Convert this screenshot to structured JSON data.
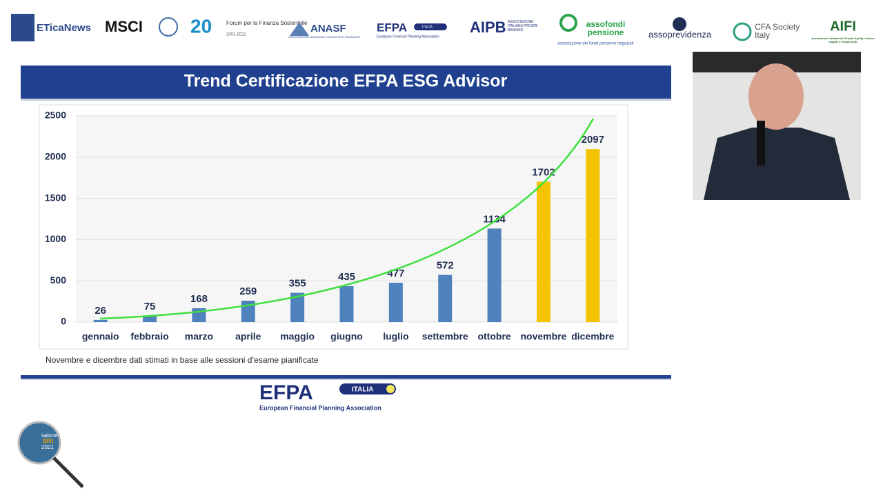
{
  "logos": {
    "eticanews": "ETicaNews",
    "msci": "MSCI",
    "forum_number": "20",
    "forum_name": "Forum per la Finanza Sostenibile",
    "forum_years": "2001-2021",
    "anasf": "ANASF",
    "anasf_sub": "ASSOCIAZIONE NAZIONALE CONSULENTI FINANZIARI",
    "efpa": "EFPA",
    "efpa_country": "ITALIA",
    "efpa_sub": "European Financial Planning Association",
    "aipb": "AIPB",
    "aipb_sub": "ASSOCIAZIONE ITALIANA PRIVATE BANKING",
    "assofondi": "assofondi pensione",
    "assofondi_sub": "associazione dei fondi pensione negoziali",
    "assoprevidenza": "assoprevidenza",
    "cfa": "CFA Society Italy",
    "aifi": "AIFI",
    "aifi_sub": "Associazione Italiana del Private Equity, Venture Capital e Private Debt"
  },
  "chart_data": {
    "type": "bar",
    "title": "Trend Certificazione EFPA ESG Advisor",
    "categories": [
      "gennaio",
      "febbraio",
      "marzo",
      "aprile",
      "maggio",
      "giugno",
      "luglio",
      "settembre",
      "ottobre",
      "novembre",
      "dicembre"
    ],
    "values": [
      26,
      75,
      168,
      259,
      355,
      435,
      477,
      572,
      1134,
      1702,
      2097
    ],
    "colors": [
      "#4f81bd",
      "#4f81bd",
      "#4f81bd",
      "#4f81bd",
      "#4f81bd",
      "#4f81bd",
      "#4f81bd",
      "#4f81bd",
      "#4f81bd",
      "#f5c400",
      "#f5c400"
    ],
    "ylim": [
      0,
      2500
    ],
    "yticks": [
      0,
      500,
      1000,
      1500,
      2000,
      2500
    ],
    "grid": true
  },
  "footnote": "Novembre e dicembre dati stimati in base alle sessioni d’esame pianificate",
  "footer_logo": {
    "name": "EFPA",
    "country": "ITALIA",
    "sub": "European Financial Planning Association"
  },
  "event_badge": {
    "name": "salone",
    "acronym": "SRI",
    "year": "2021"
  }
}
